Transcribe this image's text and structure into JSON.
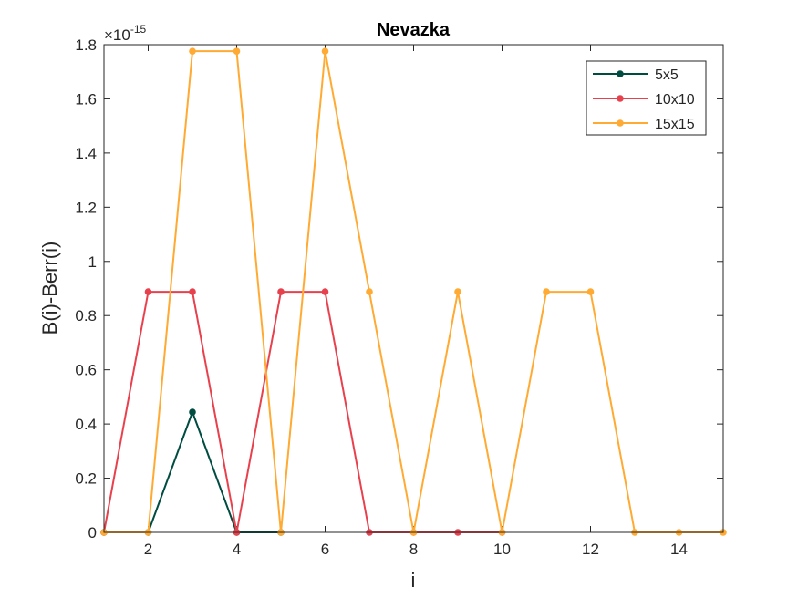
{
  "chart_data": {
    "type": "line",
    "title": "Nevazka",
    "xlabel": "i",
    "ylabel": "B(i)-Berr(i)",
    "exponent_label": {
      "base": "×10",
      "power": "-15"
    },
    "xlim": [
      1,
      15
    ],
    "ylim": [
      0,
      1.8
    ],
    "xticks": [
      2,
      4,
      6,
      8,
      10,
      12,
      14
    ],
    "yticks": [
      0,
      0.2,
      0.4,
      0.6,
      0.8,
      1,
      1.2,
      1.4,
      1.6,
      1.8
    ],
    "ytick_labels": [
      "0",
      "0.2",
      "0.4",
      "0.6",
      "0.8",
      "1",
      "1.2",
      "1.4",
      "1.6",
      "1.8"
    ],
    "grid": false,
    "legend_position": "top-right",
    "series": [
      {
        "name": "5x5",
        "color": "#004c40",
        "x": [
          1,
          2,
          3,
          4,
          5
        ],
        "values": [
          0,
          0,
          0.444,
          0,
          0
        ]
      },
      {
        "name": "10x10",
        "color": "#e8414e",
        "x": [
          1,
          2,
          3,
          4,
          5,
          6,
          7,
          8,
          9,
          10
        ],
        "values": [
          0,
          0.888,
          0.888,
          0,
          0.888,
          0.888,
          0,
          0,
          0,
          0
        ]
      },
      {
        "name": "15x15",
        "color": "#ffaa33",
        "x": [
          1,
          2,
          3,
          4,
          5,
          6,
          7,
          8,
          9,
          10,
          11,
          12,
          13,
          14,
          15
        ],
        "values": [
          0,
          0,
          1.776,
          1.776,
          0,
          1.776,
          0.888,
          0,
          0.888,
          0,
          0.888,
          0.888,
          0,
          0,
          0
        ]
      }
    ]
  }
}
